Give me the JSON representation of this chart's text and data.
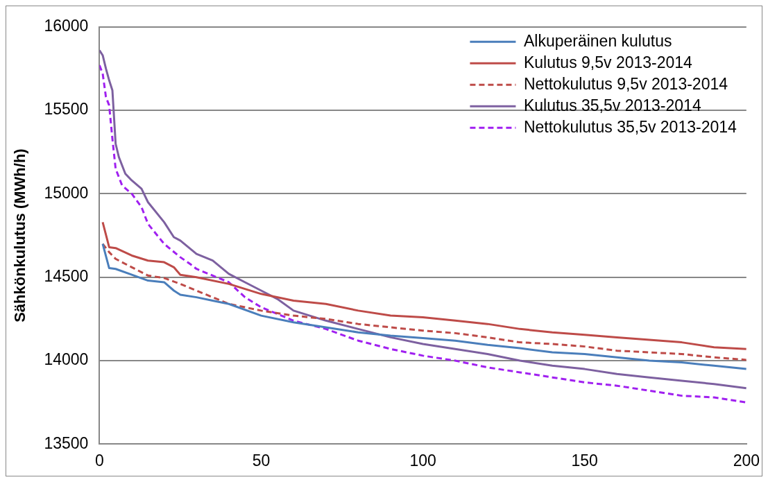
{
  "chart_data": {
    "type": "line",
    "ylabel": "Sähkönkulutus (MWh/h)",
    "xlim": [
      0,
      200
    ],
    "xticks": [
      0,
      50,
      100,
      150,
      200
    ],
    "ylim": [
      13500,
      16000
    ],
    "yticks": [
      13500,
      14000,
      14500,
      15000,
      15500,
      16000
    ],
    "grid": "y",
    "legend": "top right",
    "marker": "none",
    "series": [
      {
        "name": "Alkuperäinen kulutus",
        "color": "#4a7ebb",
        "line_style": "solid",
        "x": [
          1,
          3,
          5,
          10,
          15,
          20,
          23,
          25,
          30,
          35,
          40,
          50,
          60,
          70,
          80,
          90,
          100,
          110,
          120,
          130,
          140,
          150,
          160,
          170,
          180,
          190,
          200
        ],
        "values": [
          14700,
          14555,
          14550,
          14515,
          14480,
          14470,
          14420,
          14395,
          14380,
          14360,
          14340,
          14270,
          14230,
          14200,
          14170,
          14150,
          14135,
          14120,
          14095,
          14075,
          14050,
          14040,
          14020,
          14000,
          13990,
          13970,
          13950
        ]
      },
      {
        "name": "Kulutus 9,5v 2013-2014",
        "color": "#be4b48",
        "line_style": "solid",
        "x": [
          1,
          3,
          5,
          10,
          15,
          20,
          23,
          25,
          30,
          40,
          50,
          60,
          70,
          80,
          90,
          100,
          110,
          120,
          130,
          140,
          150,
          160,
          170,
          180,
          190,
          200
        ],
        "values": [
          14830,
          14680,
          14675,
          14630,
          14600,
          14590,
          14560,
          14515,
          14500,
          14460,
          14400,
          14360,
          14340,
          14300,
          14270,
          14260,
          14240,
          14220,
          14190,
          14170,
          14155,
          14140,
          14125,
          14110,
          14080,
          14070
        ]
      },
      {
        "name": "Nettokulutus 9,5v 2013-2014",
        "color": "#be4b48",
        "line_style": "dashed",
        "x": [
          1,
          3,
          5,
          10,
          15,
          20,
          25,
          30,
          40,
          50,
          60,
          70,
          80,
          90,
          100,
          110,
          120,
          130,
          140,
          150,
          160,
          170,
          180,
          190,
          200
        ],
        "values": [
          14700,
          14650,
          14610,
          14560,
          14510,
          14495,
          14460,
          14420,
          14340,
          14300,
          14270,
          14250,
          14220,
          14200,
          14180,
          14165,
          14140,
          14110,
          14100,
          14085,
          14060,
          14050,
          14040,
          14020,
          14005
        ]
      },
      {
        "name": "Kulutus 35,5v 2013-2014",
        "color": "#7d60a0",
        "line_style": "solid",
        "x": [
          0,
          1,
          2,
          3,
          4,
          5,
          6,
          8,
          10,
          13,
          15,
          20,
          23,
          25,
          30,
          35,
          40,
          45,
          50,
          55,
          60,
          70,
          80,
          90,
          100,
          110,
          120,
          130,
          140,
          150,
          160,
          170,
          180,
          190,
          200
        ],
        "values": [
          15860,
          15830,
          15750,
          15680,
          15620,
          15300,
          15220,
          15120,
          15080,
          15030,
          14950,
          14830,
          14740,
          14720,
          14640,
          14600,
          14520,
          14470,
          14420,
          14370,
          14300,
          14240,
          14190,
          14140,
          14100,
          14070,
          14040,
          14000,
          13970,
          13950,
          13920,
          13900,
          13880,
          13860,
          13835
        ]
      },
      {
        "name": "Nettokulutus 35,5v 2013-2014",
        "color": "#a020f0",
        "line_style": "dashed",
        "x": [
          0,
          1,
          2,
          3,
          4,
          5,
          7,
          10,
          13,
          15,
          20,
          25,
          28,
          30,
          40,
          45,
          50,
          60,
          70,
          80,
          90,
          100,
          110,
          120,
          130,
          140,
          150,
          160,
          170,
          180,
          190,
          200
        ],
        "values": [
          15770,
          15720,
          15580,
          15530,
          15330,
          15150,
          15050,
          15000,
          14920,
          14820,
          14700,
          14620,
          14580,
          14550,
          14470,
          14380,
          14320,
          14240,
          14190,
          14120,
          14070,
          14030,
          14000,
          13960,
          13930,
          13900,
          13870,
          13850,
          13820,
          13790,
          13780,
          13750
        ]
      }
    ]
  }
}
